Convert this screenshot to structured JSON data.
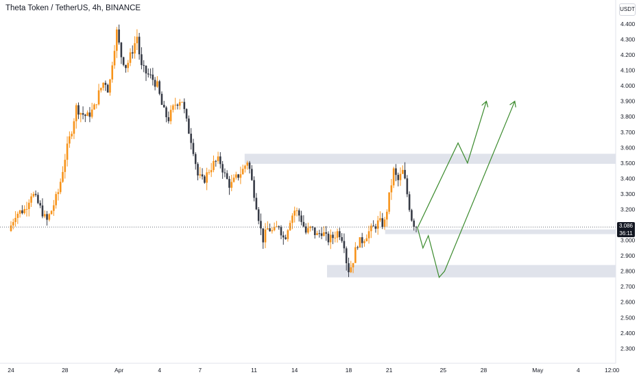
{
  "header": {
    "title": "Theta Token / TetherUS, 4h, BINANCE",
    "currency": "USDT"
  },
  "last_price": {
    "price": "3.086",
    "countdown": "36:11"
  },
  "colors": {
    "up": "#f7931a",
    "down": "#363a45",
    "zone": "#e0e3eb",
    "projection": "#3a8a2c",
    "grid_axis": "#e0e3eb",
    "last_price_line": "#555a66"
  },
  "chart_data": {
    "type": "candlestick",
    "title": "Theta Token / TetherUS, 4h, BINANCE",
    "timeframe": "4h",
    "exchange": "BINANCE",
    "ylim": [
      2.2,
      4.48
    ],
    "y_ticks": [
      2.3,
      2.4,
      2.5,
      2.6,
      2.7,
      2.8,
      2.9,
      3.0,
      3.1,
      3.2,
      3.3,
      3.4,
      3.5,
      3.6,
      3.7,
      3.8,
      3.9,
      4.0,
      4.1,
      4.2,
      4.3,
      4.4
    ],
    "y_tick_labels": [
      "2.300",
      "2.400",
      "2.500",
      "2.600",
      "2.700",
      "2.800",
      "2.900",
      "3.000",
      "3.100",
      "3.200",
      "3.300",
      "3.400",
      "3.500",
      "3.600",
      "3.700",
      "3.800",
      "3.900",
      "4.000",
      "4.100",
      "4.200",
      "4.300",
      "4.400"
    ],
    "x_ticks": [
      {
        "day": 0,
        "label": "24"
      },
      {
        "day": 4,
        "label": "28"
      },
      {
        "day": 8,
        "label": "Apr"
      },
      {
        "day": 11,
        "label": "4"
      },
      {
        "day": 14,
        "label": "7"
      },
      {
        "day": 18,
        "label": "11"
      },
      {
        "day": 21,
        "label": "14"
      },
      {
        "day": 25,
        "label": "18"
      },
      {
        "day": 28,
        "label": "21"
      },
      {
        "day": 32,
        "label": "25"
      },
      {
        "day": 35,
        "label": "28"
      },
      {
        "day": 39,
        "label": "May"
      },
      {
        "day": 42,
        "label": "4"
      },
      {
        "day": 44.5,
        "label": "12:00"
      }
    ],
    "x_unit": "days since Mar 24",
    "last_price": 3.086,
    "zones": [
      {
        "day_from": 17.3,
        "day_to": 46,
        "low": 3.495,
        "high": 3.56
      },
      {
        "day_from": 27.7,
        "day_to": 46,
        "low": 3.04,
        "high": 3.07
      },
      {
        "day_from": 23.4,
        "day_to": 46,
        "low": 2.76,
        "high": 2.84
      }
    ],
    "projections": [
      {
        "points": [
          [
            30.1,
            3.08
          ],
          [
            33.1,
            3.63
          ],
          [
            33.8,
            3.5
          ],
          [
            35.2,
            3.9
          ]
        ]
      },
      {
        "points": [
          [
            30.1,
            3.08
          ],
          [
            30.5,
            2.95
          ],
          [
            30.9,
            3.03
          ],
          [
            31.7,
            2.76
          ],
          [
            32.1,
            2.8
          ],
          [
            37.3,
            3.9
          ]
        ]
      }
    ],
    "ohlc_anchors": [
      [
        0,
        3.06
      ],
      [
        0.5,
        3.17
      ],
      [
        1.2,
        3.2
      ],
      [
        1.7,
        3.31
      ],
      [
        2.1,
        3.25
      ],
      [
        2.5,
        3.18
      ],
      [
        2.8,
        3.12
      ],
      [
        3.2,
        3.2
      ],
      [
        3.7,
        3.32
      ],
      [
        4.2,
        3.55
      ],
      [
        4.7,
        3.73
      ],
      [
        5.0,
        3.86
      ],
      [
        5.4,
        3.82
      ],
      [
        5.8,
        3.8
      ],
      [
        6.3,
        3.85
      ],
      [
        6.7,
        3.96
      ],
      [
        7.1,
        4.04
      ],
      [
        7.4,
        3.96
      ],
      [
        7.7,
        4.18
      ],
      [
        8.0,
        4.35
      ],
      [
        8.3,
        4.2
      ],
      [
        8.7,
        4.12
      ],
      [
        9.2,
        4.24
      ],
      [
        9.5,
        4.32
      ],
      [
        9.8,
        4.12
      ],
      [
        10.2,
        4.08
      ],
      [
        10.6,
        4.05
      ],
      [
        11.0,
        4.0
      ],
      [
        11.4,
        3.85
      ],
      [
        11.8,
        3.78
      ],
      [
        12.3,
        3.88
      ],
      [
        12.8,
        3.92
      ],
      [
        13.2,
        3.75
      ],
      [
        13.6,
        3.62
      ],
      [
        14.0,
        3.42
      ],
      [
        14.4,
        3.38
      ],
      [
        14.8,
        3.45
      ],
      [
        15.2,
        3.5
      ],
      [
        15.6,
        3.52
      ],
      [
        16.0,
        3.42
      ],
      [
        16.4,
        3.35
      ],
      [
        16.8,
        3.4
      ],
      [
        17.3,
        3.45
      ],
      [
        17.7,
        3.52
      ],
      [
        18.0,
        3.38
      ],
      [
        18.4,
        3.2
      ],
      [
        18.8,
        3.0
      ],
      [
        19.2,
        3.08
      ],
      [
        19.6,
        3.05
      ],
      [
        20.0,
        3.1
      ],
      [
        20.4,
        3.0
      ],
      [
        20.8,
        3.13
      ],
      [
        21.2,
        3.2
      ],
      [
        21.6,
        3.15
      ],
      [
        22.0,
        3.05
      ],
      [
        22.4,
        3.08
      ],
      [
        22.8,
        3.03
      ],
      [
        23.2,
        3.06
      ],
      [
        23.6,
        3.0
      ],
      [
        24.0,
        3.02
      ],
      [
        24.4,
        3.06
      ],
      [
        24.8,
        3.0
      ],
      [
        25.1,
        2.8
      ],
      [
        25.4,
        2.84
      ],
      [
        25.8,
        2.98
      ],
      [
        26.2,
        3.0
      ],
      [
        26.6,
        3.05
      ],
      [
        27.0,
        3.08
      ],
      [
        27.4,
        3.12
      ],
      [
        27.8,
        3.1
      ],
      [
        28.1,
        3.25
      ],
      [
        28.5,
        3.45
      ],
      [
        28.8,
        3.38
      ],
      [
        29.2,
        3.45
      ],
      [
        29.5,
        3.3
      ],
      [
        29.8,
        3.15
      ],
      [
        30.1,
        3.086
      ]
    ]
  }
}
